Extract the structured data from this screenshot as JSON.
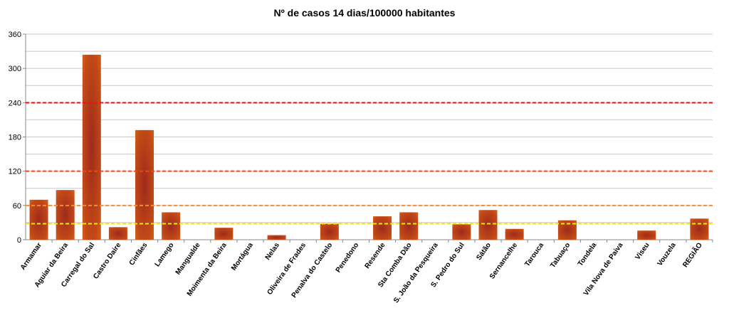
{
  "chart_data": {
    "type": "bar",
    "title": "Nº de casos 14 dias/100000 habitantes",
    "xlabel": "",
    "ylabel": "",
    "ylim": [
      0,
      360
    ],
    "yticks": [
      0,
      60,
      120,
      180,
      240,
      300,
      360
    ],
    "categories": [
      "Armamar",
      "Aguiar da Beira",
      "Carregal do Sal",
      "Castro Daire",
      "Cinfães",
      "Lamego",
      "Mangualde",
      "Moimenta da Beira",
      "Mortágua",
      "Nelas",
      "Oliveira de Frades",
      "Penalva do Castelo",
      "Penedono",
      "Resende",
      "Sta Comba Dão",
      "S. João da Pesqueira",
      "S. Pedro do Sul",
      "Sátão",
      "Sernancelhe",
      "Tarouca",
      "Tabuaço",
      "Tondela",
      "Vila Nova de Paiva",
      "Viseu",
      "Vouzela",
      "REGIÃO"
    ],
    "values": [
      70,
      87,
      324,
      22,
      192,
      48,
      0,
      21,
      0,
      8,
      0,
      28,
      0,
      41,
      48,
      0,
      27,
      52,
      19,
      0,
      34,
      0,
      0,
      16,
      0,
      37
    ],
    "reference_lines": [
      {
        "value": 240,
        "color": "#e8141c"
      },
      {
        "value": 120,
        "color": "#e34a1f"
      },
      {
        "value": 60,
        "color": "#f08a3c"
      },
      {
        "value": 28,
        "color": "#f2e61a"
      }
    ],
    "colors": {
      "bar_edge": "#d9661a",
      "bar_center": "#9e2a1b",
      "grid": "#c8c8c8",
      "axis": "#888888"
    },
    "grid": true,
    "legend": "none"
  }
}
